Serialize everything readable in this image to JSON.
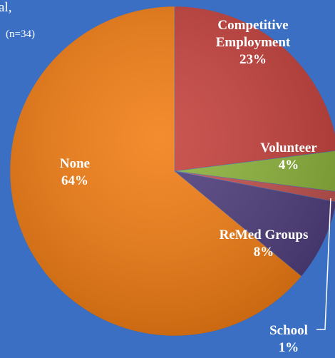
{
  "chart_data": {
    "type": "pie",
    "title": "al,",
    "subtitle": "(n=34)",
    "categories": [
      "Competitive Employment",
      "Volunteer",
      "School",
      "ReMed Groups",
      "None"
    ],
    "values": [
      23,
      4,
      1,
      8,
      64
    ],
    "value_labels": [
      "23%",
      "4%",
      "1%",
      "8%",
      "64%"
    ],
    "colors": [
      "#c5403b",
      "#8cb23a",
      "#c0504d",
      "#4e3d7c",
      "#f27c12"
    ]
  }
}
